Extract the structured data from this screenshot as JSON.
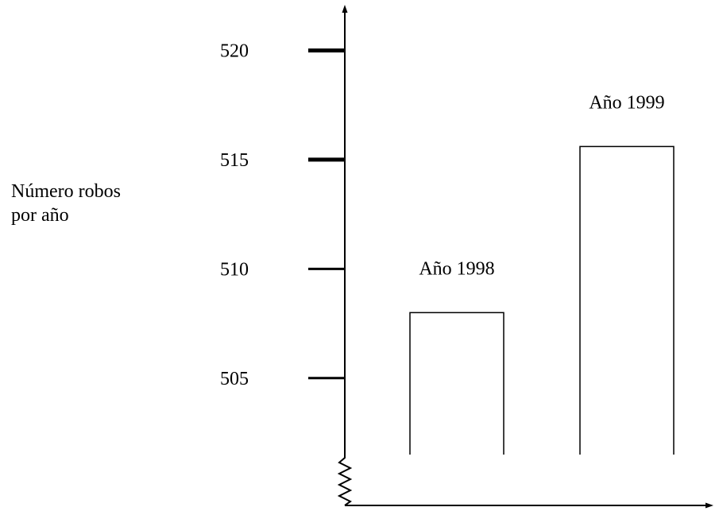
{
  "chart_data": {
    "type": "bar",
    "categories": [
      "Año 1998",
      "Año 1999"
    ],
    "values": [
      508,
      515.6
    ],
    "ylabel": [
      "Número robos",
      "por año"
    ],
    "yticks": [
      505,
      510,
      515,
      520
    ],
    "ylim": [
      501.5,
      521
    ],
    "axis_break": true,
    "grid": false,
    "legend": "none"
  }
}
